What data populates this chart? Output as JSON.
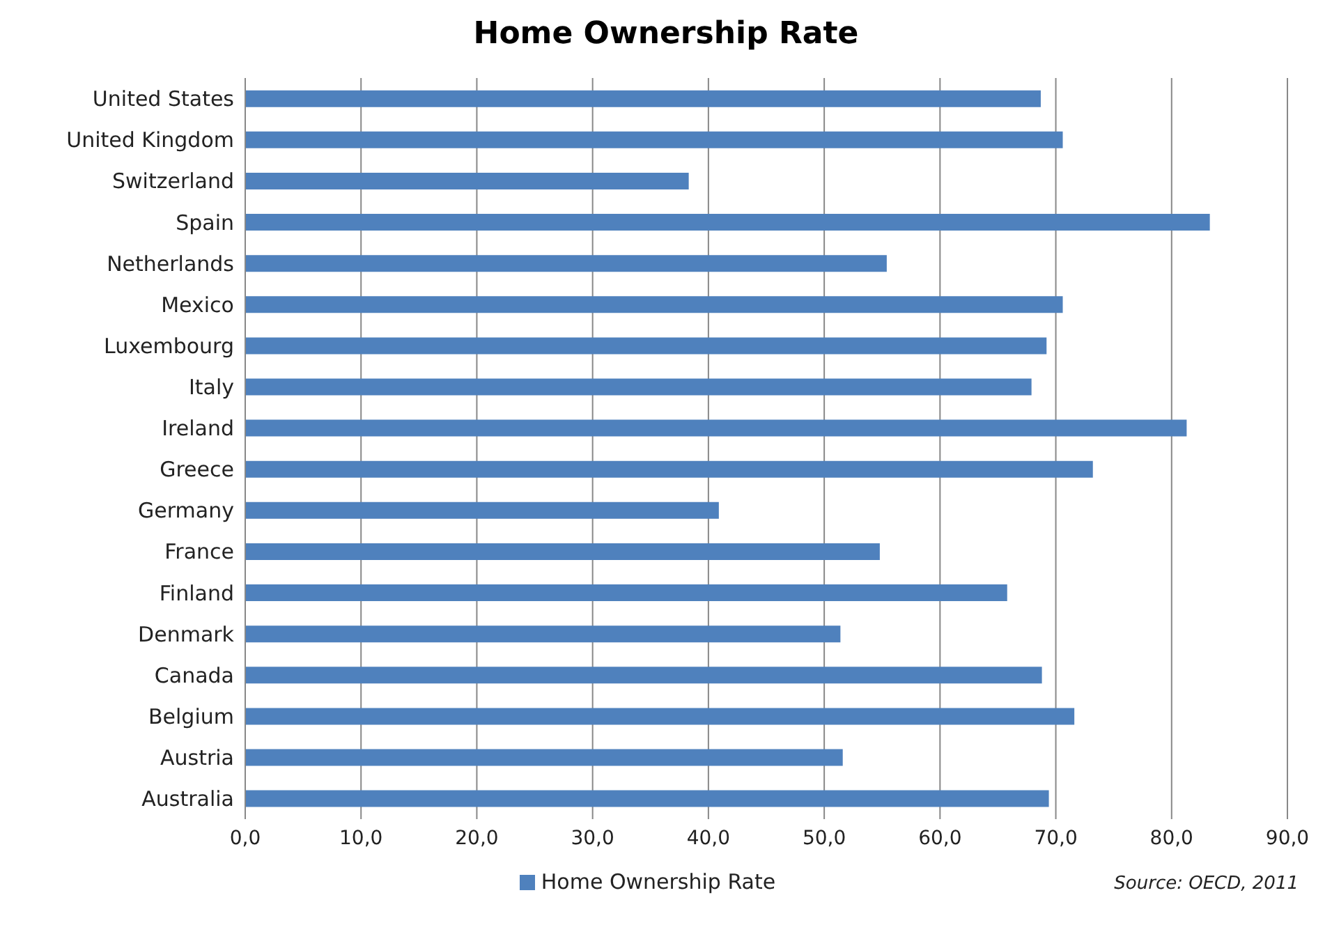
{
  "chart_data": {
    "type": "bar",
    "orientation": "horizontal",
    "title": "Home Ownership Rate",
    "categories": [
      "United States",
      "United Kingdom",
      "Switzerland",
      "Spain",
      "Netherlands",
      "Mexico",
      "Luxembourg",
      "Italy",
      "Ireland",
      "Greece",
      "Germany",
      "France",
      "Finland",
      "Denmark",
      "Canada",
      "Belgium",
      "Austria",
      "Australia"
    ],
    "series": [
      {
        "name": "Home Ownership Rate",
        "color": "#4f81bd",
        "values": [
          68.7,
          70.6,
          38.3,
          83.3,
          55.4,
          70.6,
          69.2,
          67.9,
          81.3,
          73.2,
          40.9,
          54.8,
          65.8,
          51.4,
          68.8,
          71.6,
          51.6,
          69.4
        ]
      }
    ],
    "xlim": [
      0,
      90
    ],
    "xticks": [
      {
        "value": 0,
        "label": "0,0"
      },
      {
        "value": 10,
        "label": "10,0"
      },
      {
        "value": 20,
        "label": "20,0"
      },
      {
        "value": 30,
        "label": "30,0"
      },
      {
        "value": 40,
        "label": "40,0"
      },
      {
        "value": 50,
        "label": "50,0"
      },
      {
        "value": 60,
        "label": "60,0"
      },
      {
        "value": 70,
        "label": "70,0"
      },
      {
        "value": 80,
        "label": "80,0"
      },
      {
        "value": 90,
        "label": "90,0"
      }
    ],
    "grid": "x",
    "legend": "bottom",
    "annotations": [
      "Source: OECD, 2011"
    ]
  }
}
